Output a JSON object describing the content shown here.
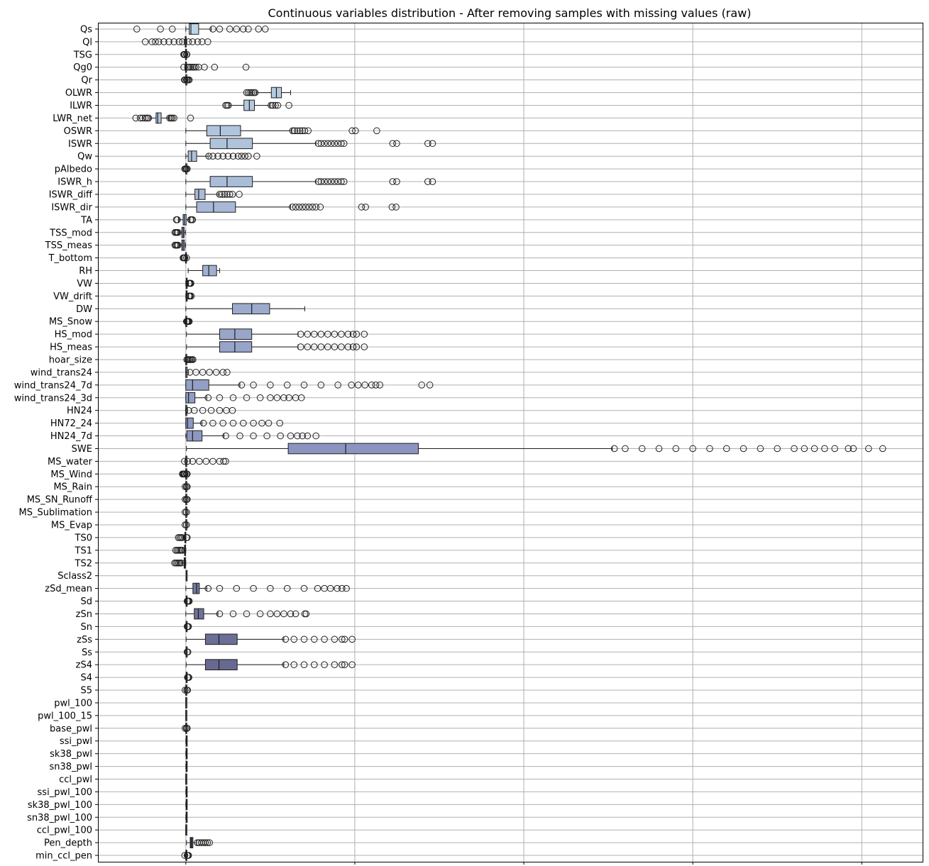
{
  "chart_data": {
    "type": "boxplot",
    "orientation": "horizontal",
    "title": "Continuous variables distribution - After removing samples with missing values (raw)",
    "xlabel": "",
    "ylabel": "",
    "xlim": [
      -260,
      2180
    ],
    "xticks": [
      0,
      500,
      1000,
      1500,
      2000
    ],
    "grid": true,
    "palette": {
      "start": "#bcd4e6",
      "mid": "#8c96c0",
      "end": "#474266"
    },
    "series": [
      {
        "name": "Qs",
        "q1": 10,
        "median": 15,
        "q3": 38,
        "wlow": 0,
        "whigh": 75,
        "fliers": [
          -145,
          -75,
          -40,
          80,
          100,
          130,
          150,
          170,
          185,
          215,
          235
        ]
      },
      {
        "name": "Ql",
        "q1": -2,
        "median": -1,
        "q3": 0,
        "wlow": -5,
        "whigh": 3,
        "fliers": [
          -120,
          -100,
          -90,
          -80,
          -65,
          -50,
          -35,
          -20,
          -10,
          8,
          20,
          35,
          48,
          65
        ]
      },
      {
        "name": "TSG",
        "q1": -1,
        "median": 0,
        "q3": 0,
        "wlow": -2,
        "whigh": 1,
        "fliers": [
          -6,
          -5,
          -4,
          -3,
          2,
          3
        ]
      },
      {
        "name": "Qg0",
        "q1": -1,
        "median": 0,
        "q3": 1,
        "wlow": -3,
        "whigh": 3,
        "fliers": [
          -6,
          6,
          10,
          15,
          20,
          25,
          30,
          38,
          55,
          85,
          178
        ]
      },
      {
        "name": "Qr",
        "q1": 0,
        "median": 0,
        "q3": 0,
        "wlow": 0,
        "whigh": 0,
        "fliers": [
          -4,
          -2,
          2,
          4,
          7,
          10
        ]
      },
      {
        "name": "OLWR",
        "q1": 253,
        "median": 268,
        "q3": 283,
        "wlow": 210,
        "whigh": 310,
        "fliers": [
          180,
          185,
          190,
          195,
          200,
          205
        ]
      },
      {
        "name": "ILWR",
        "q1": 172,
        "median": 188,
        "q3": 203,
        "wlow": 130,
        "whigh": 248,
        "fliers": [
          118,
          122,
          126,
          252,
          258,
          265,
          272,
          305
        ]
      },
      {
        "name": "LWR_net",
        "q1": -88,
        "median": -83,
        "q3": -73,
        "wlow": -105,
        "whigh": -50,
        "fliers": [
          -148,
          -135,
          -128,
          -120,
          -115,
          -110,
          -48,
          -44,
          -40,
          -35,
          14
        ]
      },
      {
        "name": "OSWR",
        "q1": 62,
        "median": 102,
        "q3": 162,
        "wlow": 0,
        "whigh": 312,
        "fliers": [
          316,
          322,
          330,
          338,
          345,
          352,
          362,
          492,
          502,
          565
        ]
      },
      {
        "name": "ISWR",
        "q1": 72,
        "median": 122,
        "q3": 197,
        "wlow": 0,
        "whigh": 385,
        "fliers": [
          392,
          400,
          410,
          420,
          430,
          440,
          450,
          460,
          468,
          612,
          624,
          716,
          730
        ]
      },
      {
        "name": "Qw",
        "q1": 7,
        "median": 17,
        "q3": 32,
        "wlow": 0,
        "whigh": 66,
        "fliers": [
          68,
          80,
          95,
          110,
          125,
          140,
          155,
          165,
          175,
          185,
          210
        ]
      },
      {
        "name": "pAlbedo",
        "q1": 0,
        "median": 0,
        "q3": 1,
        "wlow": 0,
        "whigh": 1,
        "fliers": [
          -3,
          -1,
          2,
          4
        ]
      },
      {
        "name": "ISWR_h",
        "q1": 72,
        "median": 122,
        "q3": 197,
        "wlow": 0,
        "whigh": 385,
        "fliers": [
          392,
          400,
          410,
          420,
          430,
          440,
          450,
          460,
          468,
          612,
          624,
          716,
          730
        ]
      },
      {
        "name": "ISWR_diff",
        "q1": 27,
        "median": 38,
        "q3": 57,
        "wlow": 0,
        "whigh": 96,
        "fliers": [
          100,
          108,
          115,
          122,
          130,
          138,
          158
        ]
      },
      {
        "name": "ISWR_dir",
        "q1": 32,
        "median": 82,
        "q3": 147,
        "wlow": 0,
        "whigh": 310,
        "fliers": [
          315,
          325,
          335,
          345,
          355,
          365,
          375,
          385,
          398,
          520,
          532,
          610,
          622
        ]
      },
      {
        "name": "TA",
        "q1": -8,
        "median": -4,
        "q3": 1,
        "wlow": -22,
        "whigh": 12,
        "fliers": [
          -28,
          -25,
          14,
          17,
          20
        ]
      },
      {
        "name": "TSS_mod",
        "q1": -12,
        "median": -8,
        "q3": -5,
        "wlow": -20,
        "whigh": -1,
        "fliers": [
          -32,
          -29,
          -26,
          -23
        ]
      },
      {
        "name": "TSS_meas",
        "q1": -12,
        "median": -8,
        "q3": -4,
        "wlow": -20,
        "whigh": -1,
        "fliers": [
          -32,
          -29,
          -26,
          -23
        ]
      },
      {
        "name": "T_bottom",
        "q1": -1,
        "median": 0,
        "q3": 0,
        "wlow": -2,
        "whigh": 0,
        "fliers": [
          -8,
          -6,
          -4,
          -3,
          2
        ]
      },
      {
        "name": "RH",
        "q1": 50,
        "median": 68,
        "q3": 91,
        "wlow": 7,
        "whigh": 100,
        "fliers": []
      },
      {
        "name": "VW",
        "q1": 1,
        "median": 2,
        "q3": 4,
        "wlow": 0,
        "whigh": 8,
        "fliers": [
          9,
          11,
          13,
          15
        ]
      },
      {
        "name": "VW_drift",
        "q1": 1,
        "median": 2,
        "q3": 4,
        "wlow": 0,
        "whigh": 8,
        "fliers": [
          9,
          11,
          13,
          16
        ]
      },
      {
        "name": "DW",
        "q1": 138,
        "median": 195,
        "q3": 248,
        "wlow": 0,
        "whigh": 352,
        "fliers": []
      },
      {
        "name": "MS_Snow",
        "q1": 0,
        "median": 0,
        "q3": 0,
        "wlow": 0,
        "whigh": 0,
        "fliers": [
          2,
          4,
          6,
          8,
          10
        ]
      },
      {
        "name": "HS_mod",
        "q1": 100,
        "median": 145,
        "q3": 195,
        "wlow": 2,
        "whigh": 332,
        "fliers": [
          340,
          360,
          380,
          400,
          420,
          440,
          460,
          480,
          495,
          505,
          528
        ]
      },
      {
        "name": "HS_meas",
        "q1": 100,
        "median": 145,
        "q3": 195,
        "wlow": 2,
        "whigh": 332,
        "fliers": [
          340,
          360,
          380,
          400,
          420,
          440,
          460,
          480,
          495,
          505,
          528
        ]
      },
      {
        "name": "hoar_size",
        "q1": 0,
        "median": 0,
        "q3": 1,
        "wlow": 0,
        "whigh": 1,
        "fliers": [
          3,
          6,
          9,
          12,
          15,
          18,
          21
        ]
      },
      {
        "name": "wind_trans24",
        "q1": 0,
        "median": 0,
        "q3": 4,
        "wlow": 0,
        "whigh": 8,
        "fliers": [
          12,
          30,
          50,
          70,
          90,
          110,
          122
        ]
      },
      {
        "name": "wind_trans24_7d",
        "q1": 0,
        "median": 20,
        "q3": 68,
        "wlow": 0,
        "whigh": 160,
        "fliers": [
          165,
          200,
          250,
          300,
          350,
          400,
          450,
          490,
          510,
          530,
          550,
          562,
          574,
          698,
          722
        ]
      },
      {
        "name": "wind_trans24_3d",
        "q1": 0,
        "median": 8,
        "q3": 27,
        "wlow": 0,
        "whigh": 62,
        "fliers": [
          66,
          100,
          140,
          180,
          220,
          250,
          270,
          290,
          305,
          325,
          342
        ]
      },
      {
        "name": "HN24",
        "q1": 0,
        "median": 0,
        "q3": 2,
        "wlow": 0,
        "whigh": 5,
        "fliers": [
          8,
          25,
          50,
          75,
          100,
          120,
          138
        ]
      },
      {
        "name": "HN72_24",
        "q1": 0,
        "median": 5,
        "q3": 22,
        "wlow": 0,
        "whigh": 48,
        "fliers": [
          52,
          80,
          110,
          140,
          170,
          200,
          225,
          245,
          278
        ]
      },
      {
        "name": "HN24_7d",
        "q1": 3,
        "median": 20,
        "q3": 48,
        "wlow": 0,
        "whigh": 113,
        "fliers": [
          118,
          160,
          200,
          240,
          280,
          310,
          330,
          345,
          360,
          385
        ]
      },
      {
        "name": "SWE",
        "q1": 303,
        "median": 473,
        "q3": 688,
        "wlow": 2,
        "whigh": 1262,
        "fliers": [
          1268,
          1300,
          1350,
          1400,
          1450,
          1500,
          1550,
          1600,
          1650,
          1700,
          1750,
          1800,
          1830,
          1860,
          1890,
          1920,
          1960,
          1975,
          2020,
          2062
        ]
      },
      {
        "name": "MS_water",
        "q1": 0,
        "median": 0,
        "q3": 0,
        "wlow": 0,
        "whigh": 0,
        "fliers": [
          -4,
          5,
          20,
          40,
          60,
          80,
          100,
          112,
          118
        ]
      },
      {
        "name": "MS_Wind",
        "q1": 0,
        "median": 0,
        "q3": 0,
        "wlow": 0,
        "whigh": 0,
        "fliers": [
          -10,
          -8,
          -6,
          -4,
          -2,
          2,
          4
        ]
      },
      {
        "name": "MS_Rain",
        "q1": 0,
        "median": 0,
        "q3": 0,
        "wlow": 0,
        "whigh": 0,
        "fliers": [
          -2,
          2,
          4
        ]
      },
      {
        "name": "MS_SN_Runoff",
        "q1": 0,
        "median": 0,
        "q3": 0,
        "wlow": 0,
        "whigh": 0,
        "fliers": [
          -2,
          2,
          4
        ]
      },
      {
        "name": "MS_Sublimation",
        "q1": 0,
        "median": 0,
        "q3": 0,
        "wlow": 0,
        "whigh": 0,
        "fliers": [
          -2,
          2
        ]
      },
      {
        "name": "MS_Evap",
        "q1": 0,
        "median": 0,
        "q3": 0,
        "wlow": 0,
        "whigh": 0,
        "fliers": [
          -2,
          2
        ]
      },
      {
        "name": "TS0",
        "q1": -3,
        "median": -1,
        "q3": 0,
        "wlow": -8,
        "whigh": 0,
        "fliers": [
          -22,
          -18,
          -14,
          -10,
          2,
          4
        ]
      },
      {
        "name": "TS1",
        "q1": -4,
        "median": -2,
        "q3": -1,
        "wlow": -9,
        "whigh": 0,
        "fliers": [
          -30,
          -26,
          -22,
          -18,
          -14,
          -11
        ]
      },
      {
        "name": "TS2",
        "q1": -5,
        "median": -3,
        "q3": -1,
        "wlow": -10,
        "whigh": 0,
        "fliers": [
          -33,
          -29,
          -25,
          -21,
          -17,
          -13
        ]
      },
      {
        "name": "Sclass2",
        "q1": 1,
        "median": 1,
        "q3": 2,
        "wlow": 1,
        "whigh": 3,
        "fliers": []
      },
      {
        "name": "zSd_mean",
        "q1": 21,
        "median": 32,
        "q3": 40,
        "wlow": 0,
        "whigh": 62,
        "fliers": [
          66,
          100,
          150,
          200,
          250,
          300,
          350,
          390,
          410,
          428,
          448,
          462,
          475
        ]
      },
      {
        "name": "Sd",
        "q1": 1,
        "median": 1,
        "q3": 2,
        "wlow": 0,
        "whigh": 3,
        "fliers": [
          4,
          6,
          8,
          10
        ]
      },
      {
        "name": "zSn",
        "q1": 25,
        "median": 37,
        "q3": 53,
        "wlow": 0,
        "whigh": 95,
        "fliers": [
          100,
          140,
          180,
          220,
          250,
          270,
          290,
          310,
          325,
          352,
          356
        ]
      },
      {
        "name": "Sn",
        "q1": 1,
        "median": 1,
        "q3": 2,
        "wlow": 0,
        "whigh": 3,
        "fliers": [
          4,
          6,
          8
        ]
      },
      {
        "name": "zSs",
        "q1": 58,
        "median": 98,
        "q3": 152,
        "wlow": 1,
        "whigh": 290,
        "fliers": [
          295,
          320,
          350,
          380,
          410,
          440,
          462,
          470,
          492
        ]
      },
      {
        "name": "Ss",
        "q1": 1,
        "median": 1,
        "q3": 2,
        "wlow": 0,
        "whigh": 3,
        "fliers": [
          4,
          6
        ]
      },
      {
        "name": "zS4",
        "q1": 58,
        "median": 98,
        "q3": 152,
        "wlow": 1,
        "whigh": 290,
        "fliers": [
          295,
          320,
          350,
          380,
          410,
          440,
          462,
          470,
          492
        ]
      },
      {
        "name": "S4",
        "q1": 1,
        "median": 2,
        "q3": 2,
        "wlow": 0,
        "whigh": 4,
        "fliers": [
          5,
          7,
          9
        ]
      },
      {
        "name": "S5",
        "q1": 0,
        "median": 0,
        "q3": 1,
        "wlow": 0,
        "whigh": 1,
        "fliers": [
          -2,
          3,
          5
        ]
      },
      {
        "name": "pwl_100",
        "q1": 0,
        "median": 0,
        "q3": 0,
        "wlow": 0,
        "whigh": 1,
        "fliers": []
      },
      {
        "name": "pwl_100_15",
        "q1": 0,
        "median": 0,
        "q3": 0,
        "wlow": 0,
        "whigh": 1,
        "fliers": []
      },
      {
        "name": "base_pwl",
        "q1": 0,
        "median": 0,
        "q3": 1,
        "wlow": 0,
        "whigh": 1,
        "fliers": [
          -2,
          2,
          4
        ]
      },
      {
        "name": "ssi_pwl",
        "q1": 1,
        "median": 2,
        "q3": 2,
        "wlow": 0,
        "whigh": 3,
        "fliers": []
      },
      {
        "name": "sk38_pwl",
        "q1": 1,
        "median": 2,
        "q3": 2,
        "wlow": 0,
        "whigh": 3,
        "fliers": []
      },
      {
        "name": "sn38_pwl",
        "q1": 1,
        "median": 2,
        "q3": 2,
        "wlow": 0,
        "whigh": 3,
        "fliers": []
      },
      {
        "name": "ccl_pwl",
        "q1": 0,
        "median": 0,
        "q3": 1,
        "wlow": 0,
        "whigh": 1,
        "fliers": []
      },
      {
        "name": "ssi_pwl_100",
        "q1": 1,
        "median": 2,
        "q3": 2,
        "wlow": 0,
        "whigh": 3,
        "fliers": []
      },
      {
        "name": "sk38_pwl_100",
        "q1": 1,
        "median": 2,
        "q3": 2,
        "wlow": 0,
        "whigh": 3,
        "fliers": []
      },
      {
        "name": "sn38_pwl_100",
        "q1": 1,
        "median": 2,
        "q3": 2,
        "wlow": 0,
        "whigh": 3,
        "fliers": []
      },
      {
        "name": "ccl_pwl_100",
        "q1": 0,
        "median": 0,
        "q3": 1,
        "wlow": 0,
        "whigh": 1,
        "fliers": []
      },
      {
        "name": "Pen_depth",
        "q1": 13,
        "median": 16,
        "q3": 21,
        "wlow": 2,
        "whigh": 31,
        "fliers": [
          34,
          40,
          46,
          52,
          58,
          64,
          70
        ]
      },
      {
        "name": "min_ccl_pen",
        "q1": 0,
        "median": 1,
        "q3": 2,
        "wlow": 0,
        "whigh": 3,
        "fliers": [
          -3,
          4,
          6,
          8
        ]
      }
    ]
  }
}
